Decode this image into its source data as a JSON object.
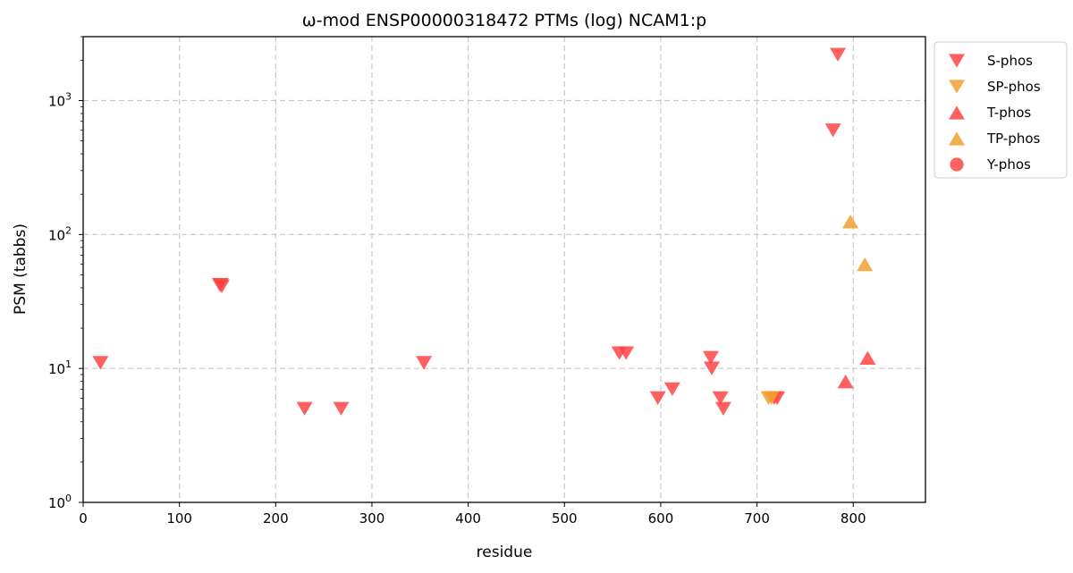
{
  "chart_data": {
    "type": "scatter",
    "title": "ω-mod ENSP00000318472 PTMs (log) NCAM1:p",
    "xlabel": "residue",
    "ylabel": "PSM (tabbs)",
    "xlim": [
      0,
      875
    ],
    "ylim": [
      1,
      3000
    ],
    "yscale": "log",
    "grid": true,
    "legend_position": "outside-top-right",
    "x_ticks": [
      "0",
      "100",
      "200",
      "300",
      "400",
      "500",
      "600",
      "700",
      "800"
    ],
    "x_tick_values": [
      0,
      100,
      200,
      300,
      400,
      500,
      600,
      700,
      800
    ],
    "y_ticks": [
      {
        "value": 1,
        "base": "10",
        "exp": "0"
      },
      {
        "value": 10,
        "base": "10",
        "exp": "1"
      },
      {
        "value": 100,
        "base": "10",
        "exp": "2"
      },
      {
        "value": 1000,
        "base": "10",
        "exp": "3"
      }
    ],
    "series": [
      {
        "name": "S-phos",
        "marker": "triangle-down",
        "color": "#ff4444",
        "points": [
          [
            18,
            11
          ],
          [
            142,
            42
          ],
          [
            143,
            42
          ],
          [
            144,
            41
          ],
          [
            230,
            5
          ],
          [
            268,
            5
          ],
          [
            354,
            11
          ],
          [
            557,
            13
          ],
          [
            564,
            13
          ],
          [
            597,
            6
          ],
          [
            612,
            7
          ],
          [
            652,
            12
          ],
          [
            653,
            10
          ],
          [
            662,
            6
          ],
          [
            665,
            5
          ],
          [
            718,
            6
          ],
          [
            721,
            6
          ],
          [
            779,
            600
          ],
          [
            784,
            2200
          ]
        ]
      },
      {
        "name": "SP-phos",
        "marker": "triangle-down",
        "color": "#f0a030",
        "points": [
          [
            712,
            6
          ],
          [
            715,
            6
          ]
        ]
      },
      {
        "name": "T-phos",
        "marker": "triangle-up",
        "color": "#ff4444",
        "points": [
          [
            792,
            8
          ],
          [
            815,
            12
          ]
        ]
      },
      {
        "name": "TP-phos",
        "marker": "triangle-up",
        "color": "#f0a030",
        "points": [
          [
            797,
            125
          ],
          [
            812,
            60
          ]
        ]
      },
      {
        "name": "Y-phos",
        "marker": "circle",
        "color": "#ff4444",
        "points": []
      }
    ]
  }
}
